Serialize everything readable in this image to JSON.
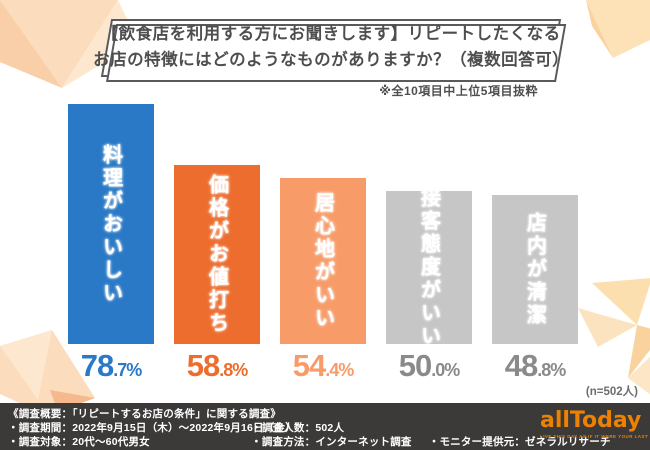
{
  "title": {
    "line1": "【飲食店を利用する方にお聞きします】リピートしたくなる",
    "line2": "お店の特徴にはどのようなものがありますか？（複数回答可）"
  },
  "note": "※全10項目中上位5項目抜粋",
  "sample_note": "(n=502人)",
  "chart_data": {
    "type": "bar",
    "title": "リピートしたくなるお店の特徴（複数回答可）",
    "categories": [
      "料理がおいしい",
      "価格がお値打ち",
      "居心地がいい",
      "接客態度がいい",
      "店内が清潔"
    ],
    "values": [
      78.7,
      58.8,
      54.4,
      50.0,
      48.8
    ],
    "value_labels": [
      "78.7%",
      "58.8%",
      "54.4%",
      "50.0%",
      "48.8%"
    ],
    "unit": "%",
    "ylim": [
      0,
      100
    ],
    "grid": false,
    "legend": "none",
    "bar_colors": [
      "#2a79c6",
      "#ed6d2e",
      "#f79c69",
      "#c6c6c7",
      "#c6c6c7"
    ],
    "value_label_colors": [
      "#2a79c6",
      "#ed6d2e",
      "#f79c69",
      "#8a8a8a",
      "#8a8a8a"
    ]
  },
  "footer": {
    "overview": "《調査概要：「リピートするお店の条件」に関する調査》",
    "period": "・調査期間：2022年9月15日（木）～2022年9月16日（金）",
    "people": "・調査人数：502人",
    "target": "・調査対象：20代～60代男女",
    "method": "・調査方法：インターネット調査",
    "monitor": "・モニター提供元：ゼネラルリサーチ",
    "logo_text": "allToday",
    "logo_tagline": "LIVE THIS DAY AS IF IT WERE YOUR LAST"
  },
  "colors": {
    "accent_blue": "#2a79c6",
    "accent_orange": "#ed6d2e",
    "accent_light_orange": "#f79c69",
    "neutral_gray": "#c6c6c7",
    "footer_bg": "#3c3a39",
    "logo_orange": "#ee8100",
    "decor_peach_1": "#fbdcbc",
    "decor_peach_2": "#f8cfa8",
    "decor_peach_3": "#fde8cf",
    "decor_peach_4": "#f5b98d"
  }
}
